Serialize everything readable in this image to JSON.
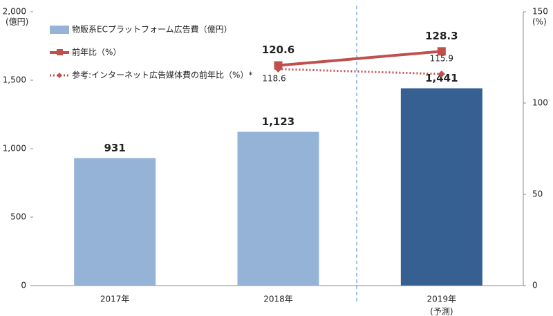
{
  "chart_data": {
    "type": "bar",
    "categories": [
      "2017年",
      "2018年",
      "2019年"
    ],
    "annotation": "(予測)",
    "ylabel": "(億円)",
    "y2label": "(%)",
    "ylim": [
      0,
      2000
    ],
    "yticks": [
      0,
      500,
      {
        "value": 1000,
        "label": "1,000"
      },
      {
        "value": 1500,
        "label": "1,500"
      },
      {
        "value": 2000,
        "label": "2,000"
      }
    ],
    "y2lim": [
      0,
      150
    ],
    "y2ticks": [
      0,
      50,
      100,
      150
    ],
    "grid": false,
    "series": [
      {
        "name": "物販系ECプラットフォーム広告費（億円）",
        "type": "bar",
        "color": "#95b3d7",
        "colors": [
          "#95b3d7",
          "#95b3d7",
          "#366092"
        ],
        "values": [
          931,
          1123,
          1441
        ],
        "value_labels": [
          "931",
          "1,123",
          "1,441"
        ]
      },
      {
        "name": "前年比（%）",
        "type": "line",
        "axis": "y2",
        "color": "#c0504d",
        "style": "solid",
        "marker": "square",
        "values": [
          null,
          120.6,
          128.3
        ]
      },
      {
        "name": "参考:インターネット広告媒体費の前年比（%）*",
        "type": "line",
        "axis": "y2",
        "color": "#c0504d",
        "style": "dotted",
        "marker": "diamond",
        "values": [
          null,
          118.6,
          115.9
        ]
      }
    ]
  }
}
